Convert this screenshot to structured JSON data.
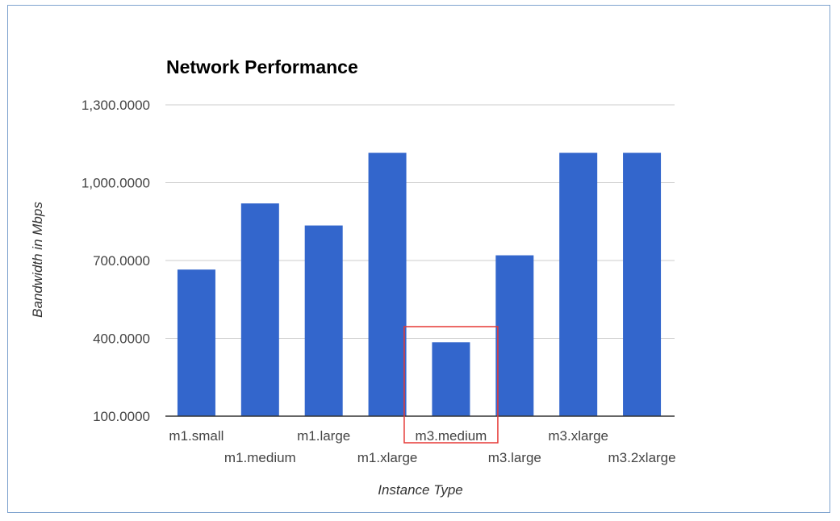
{
  "chart_data": {
    "type": "bar",
    "title": "Network Performance",
    "xlabel": "Instance Type",
    "ylabel": "Bandwidth in Mbps",
    "categories": [
      "m1.small",
      "m1.medium",
      "m1.large",
      "m1.xlarge",
      "m3.medium",
      "m3.large",
      "m3.xlarge",
      "m3.2xlarge"
    ],
    "values": [
      665,
      920,
      835,
      1115,
      385,
      720,
      1115,
      1115
    ],
    "y_ticks": [
      "100.0000",
      "400.0000",
      "700.0000",
      "1,000.0000",
      "1,300.0000"
    ],
    "ylim": [
      100,
      1300
    ],
    "grid": true,
    "bar_color": "#3366cc",
    "highlight": {
      "category": "m3.medium",
      "color": "#e53935"
    }
  }
}
